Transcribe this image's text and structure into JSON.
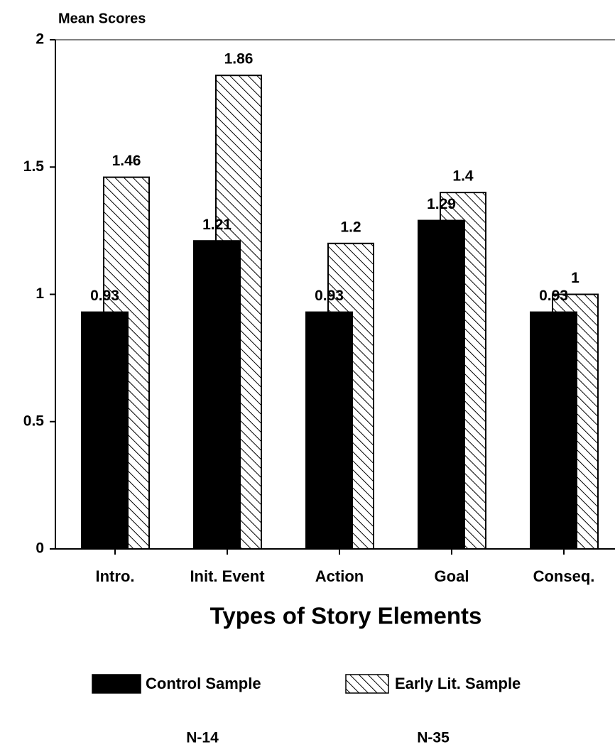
{
  "chart_data": {
    "type": "bar",
    "y_label": "Mean Scores",
    "x_label": "Types of Story Elements",
    "categories": [
      "Intro.",
      "Init. Event",
      "Action",
      "Goal",
      "Conseq."
    ],
    "series": [
      {
        "name": "Control Sample",
        "color": "#000000",
        "fill": "solid",
        "values": [
          0.93,
          1.21,
          0.93,
          1.29,
          0.93
        ]
      },
      {
        "name": "Early Lit. Sample",
        "color": "#000000",
        "fill": "hatch",
        "values": [
          1.46,
          1.86,
          1.2,
          1.4,
          1
        ]
      }
    ],
    "ylim": [
      0,
      2
    ],
    "yticks": [
      0,
      0.5,
      1,
      1.5,
      2
    ],
    "annotations": [
      "N-14",
      "N-35"
    ]
  }
}
